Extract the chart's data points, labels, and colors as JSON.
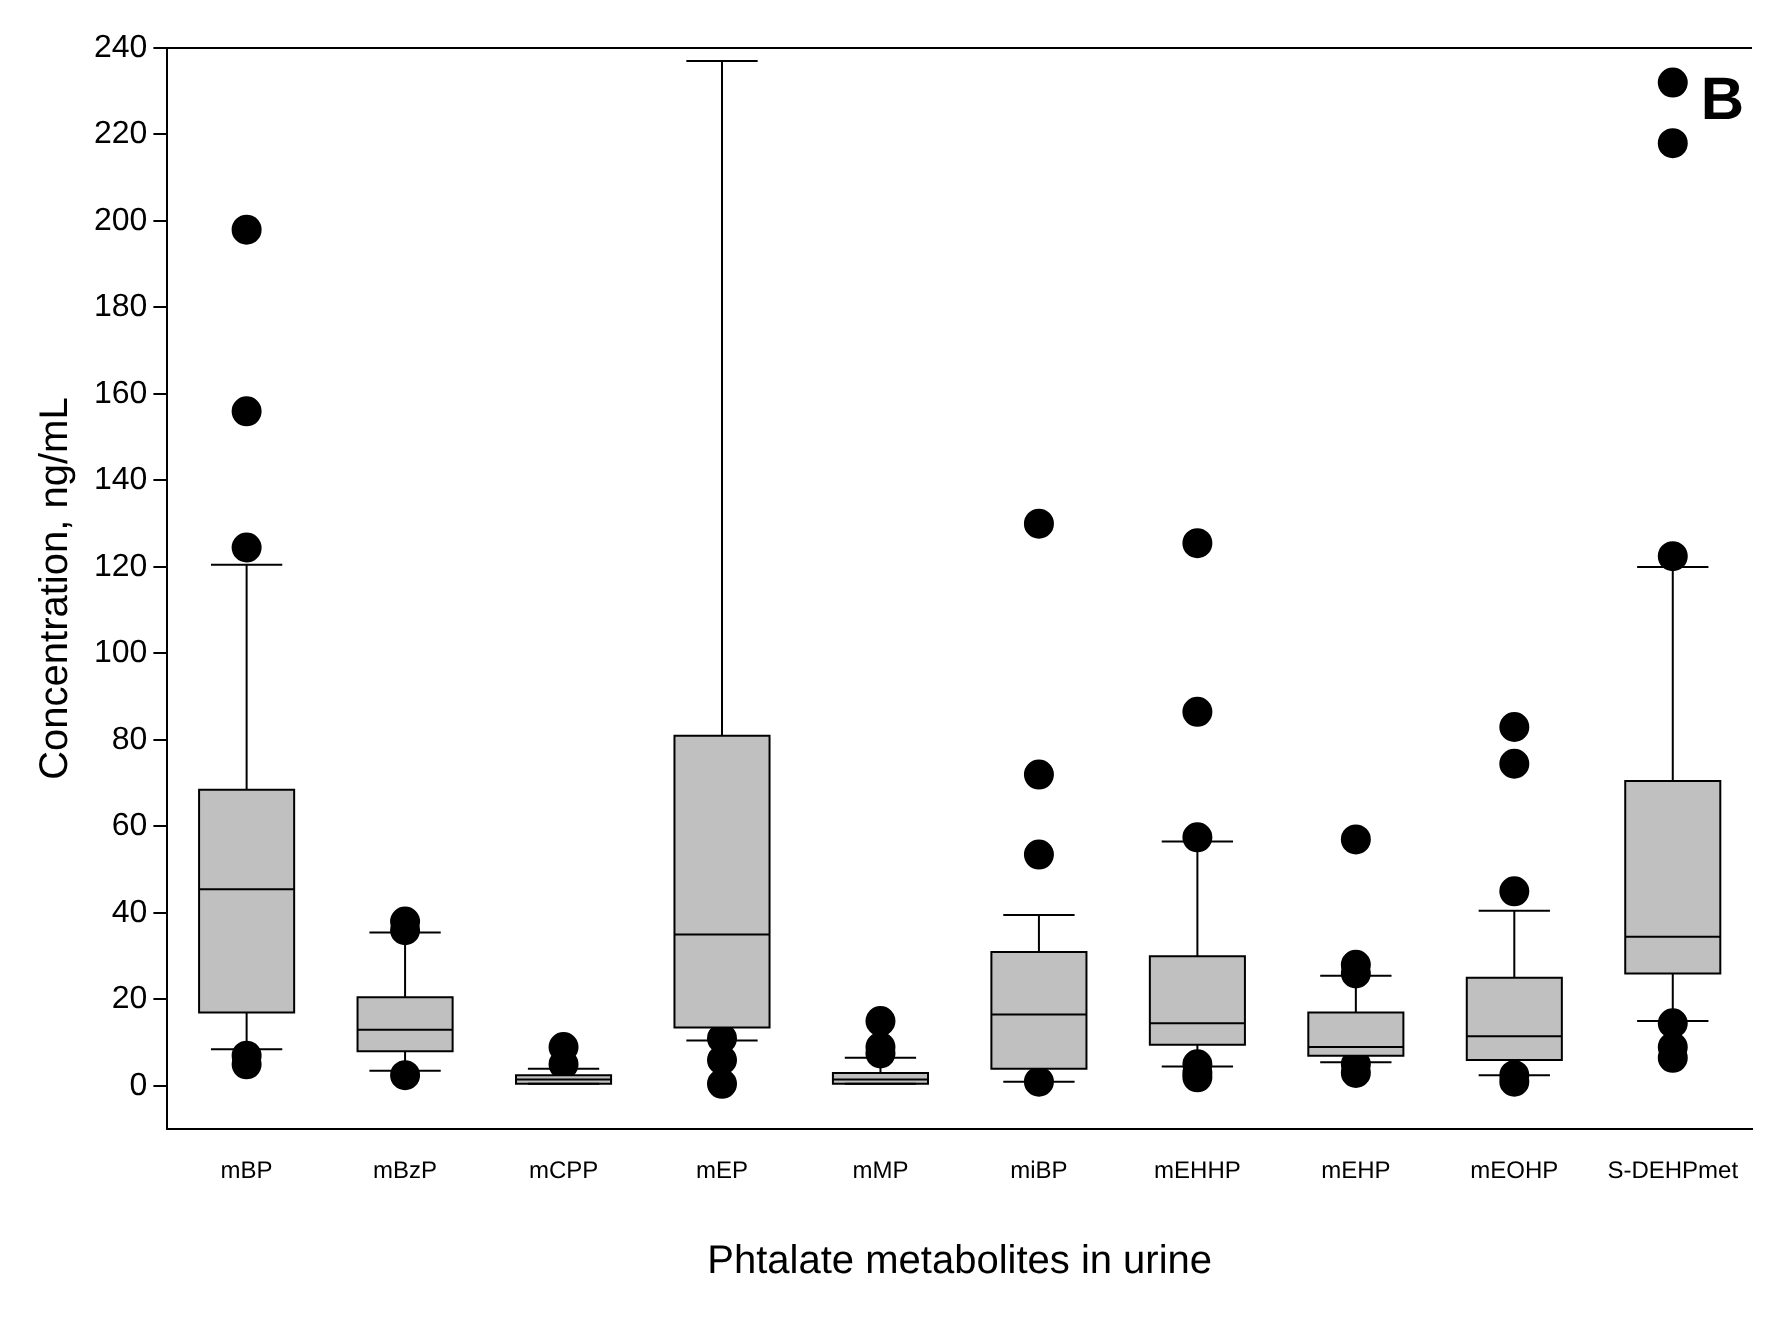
{
  "chart_data": {
    "type": "box",
    "xlabel": "Phtalate metabolites in urine",
    "ylabel": "Concentration, ng/mL",
    "annotations": [
      "B"
    ],
    "categories": [
      "mBP",
      "mBzP",
      "mCPP",
      "mEP",
      "mMP",
      "miBP",
      "mEHHP",
      "mEHP",
      "mEOHP",
      "S-DEHPmet"
    ],
    "ylim": [
      -10,
      240
    ],
    "yticks": [
      0,
      20,
      40,
      60,
      80,
      100,
      120,
      140,
      160,
      180,
      200,
      220,
      240
    ],
    "grid": false,
    "legend": false,
    "series": [
      {
        "color": "#c0c0c0",
        "boxes": [
          {
            "low": 8.5,
            "q1": 17,
            "median": 45.5,
            "q3": 68.5,
            "high": 120.5,
            "outliers": [
              198,
              156,
              124.5,
              7,
              5
            ]
          },
          {
            "low": 3.5,
            "q1": 8,
            "median": 13,
            "q3": 20.5,
            "high": 35.5,
            "outliers": [
              38,
              36,
              2.5
            ]
          },
          {
            "low": 0.5,
            "q1": 0.5,
            "median": 1.5,
            "q3": 2.5,
            "high": 4,
            "outliers": [
              9,
              5
            ]
          },
          {
            "low": 10.5,
            "q1": 13.5,
            "median": 35,
            "q3": 81,
            "high": 237,
            "outliers": [
              11,
              6,
              0.5
            ]
          },
          {
            "low": 0.5,
            "q1": 0.5,
            "median": 1.5,
            "q3": 3,
            "high": 6.5,
            "outliers": [
              15,
              9,
              7.5
            ]
          },
          {
            "low": 1,
            "q1": 4,
            "median": 16.5,
            "q3": 31,
            "high": 39.5,
            "outliers": [
              130,
              72,
              53.5,
              1
            ]
          },
          {
            "low": 4.5,
            "q1": 9.5,
            "median": 14.5,
            "q3": 30,
            "high": 56.5,
            "outliers": [
              125.5,
              86.5,
              57.5,
              5,
              3,
              2
            ]
          },
          {
            "low": 5.5,
            "q1": 7,
            "median": 9,
            "q3": 17,
            "high": 25.5,
            "outliers": [
              57,
              28,
              26,
              5,
              3
            ]
          },
          {
            "low": 2.5,
            "q1": 6,
            "median": 11.5,
            "q3": 25,
            "high": 40.5,
            "outliers": [
              83,
              74.5,
              45,
              2.5,
              1
            ]
          },
          {
            "low": 15,
            "q1": 26,
            "median": 34.5,
            "q3": 70.5,
            "high": 120,
            "outliers": [
              232,
              218,
              122.5,
              14.5,
              9,
              6.5
            ]
          }
        ]
      }
    ]
  }
}
